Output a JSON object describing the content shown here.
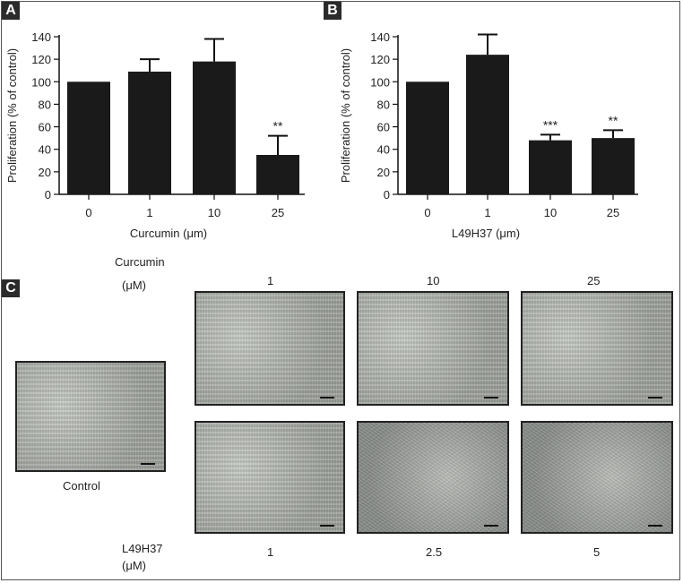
{
  "panels": {
    "a_letter": "A",
    "b_letter": "B",
    "c_letter": "C"
  },
  "chart_data": [
    {
      "type": "bar",
      "categories": [
        "0",
        "1",
        "10",
        "25"
      ],
      "values": [
        100,
        109,
        118,
        35
      ],
      "errors": [
        0,
        11,
        20,
        17
      ],
      "significance": [
        "",
        "",
        "",
        "**"
      ],
      "xlabel": "Curcumin (μm)",
      "ylabel": "Proliferation (% of control)",
      "ylim": [
        0,
        140
      ],
      "yticks": [
        0,
        20,
        40,
        60,
        80,
        100,
        120,
        140
      ],
      "grid": false,
      "bar_color": "#1a1a1a"
    },
    {
      "type": "bar",
      "categories": [
        "0",
        "1",
        "10",
        "25"
      ],
      "values": [
        100,
        124,
        48,
        50
      ],
      "errors": [
        0,
        18,
        5,
        7
      ],
      "significance": [
        "",
        "",
        "***",
        "**"
      ],
      "xlabel": "L49H37 (μm)",
      "ylabel": "Proliferation (% of control)",
      "ylim": [
        0,
        140
      ],
      "yticks": [
        0,
        20,
        40,
        60,
        80,
        100,
        120,
        140
      ],
      "grid": false,
      "bar_color": "#1a1a1a"
    }
  ],
  "panel_c": {
    "curcumin_label_line1": "Curcumin",
    "curcumin_label_line2": "(μM)",
    "curcumin_doses": [
      "1",
      "10",
      "25"
    ],
    "control_label": "Control",
    "l49_label_line1": "L49H37",
    "l49_label_line2": "(μM)",
    "l49_doses": [
      "1",
      "2.5",
      "5"
    ]
  }
}
